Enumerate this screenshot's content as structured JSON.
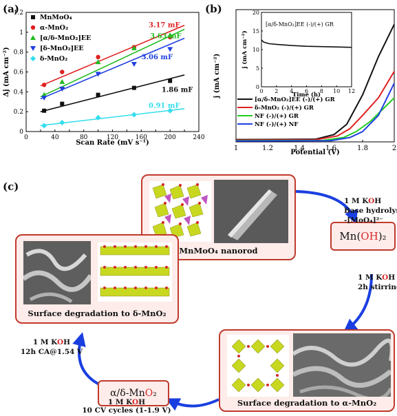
{
  "panel_labels": {
    "a": "(a)",
    "b": "(b)",
    "c": "(c)"
  },
  "chart_data": [
    {
      "type": "scatter",
      "panel": "(a)",
      "xlabel": "Scan Rate (mV s⁻¹)",
      "ylabel": "Δj (mA cm⁻²)",
      "xlim": [
        0,
        240
      ],
      "ylim": [
        0,
        1.2
      ],
      "xticks": [
        0,
        20,
        40,
        60,
        80,
        100,
        120,
        140,
        160,
        180,
        200,
        220,
        240
      ],
      "yticks": [
        0,
        0.2,
        0.4,
        0.6,
        0.8,
        1.0,
        1.2
      ],
      "series": [
        {
          "name": "MnMoO₄",
          "color": "#111111",
          "marker": "square",
          "x": [
            25,
            50,
            100,
            150,
            200
          ],
          "y": [
            0.21,
            0.28,
            0.37,
            0.44,
            0.51
          ],
          "fit": [
            [
              20,
              0.2
            ],
            [
              220,
              0.57
            ]
          ],
          "label": "1.86 mF"
        },
        {
          "name": "α-MnO₂",
          "color": "#e02020",
          "marker": "circle",
          "x": [
            25,
            50,
            100,
            150,
            200
          ],
          "y": [
            0.47,
            0.6,
            0.75,
            0.85,
            0.95
          ],
          "fit": [
            [
              20,
              0.46
            ],
            [
              220,
              1.07
            ]
          ],
          "label": "3.17 mF"
        },
        {
          "name": "[α/δ-MnO₂]EE",
          "color": "#22bb22",
          "marker": "triangle-up",
          "x": [
            25,
            50,
            100,
            150,
            200
          ],
          "y": [
            0.37,
            0.5,
            0.7,
            0.84,
            0.97
          ],
          "fit": [
            [
              20,
              0.35
            ],
            [
              220,
              1.03
            ]
          ],
          "label": "3.63 mF"
        },
        {
          "name": "[δ-MnO₂]EE",
          "color": "#1f3fe0",
          "marker": "triangle-down",
          "x": [
            25,
            50,
            100,
            150,
            200
          ],
          "y": [
            0.34,
            0.43,
            0.58,
            0.68,
            0.83
          ],
          "fit": [
            [
              20,
              0.33
            ],
            [
              220,
              0.94
            ]
          ],
          "label": "3.06 mF"
        },
        {
          "name": "δ-MnO₂",
          "color": "#33ddee",
          "marker": "diamond",
          "x": [
            25,
            50,
            100,
            150,
            200
          ],
          "y": [
            0.06,
            0.09,
            0.14,
            0.17,
            0.21
          ],
          "fit": [
            [
              20,
              0.06
            ],
            [
              220,
              0.23
            ]
          ],
          "label": "0.91 mF"
        }
      ]
    },
    {
      "type": "line",
      "panel": "(b)",
      "xlabel": "Potential (V)",
      "ylabel": "j (mA cm⁻²)",
      "xlim": [
        1.0,
        2.0
      ],
      "ylim": [
        0,
        45
      ],
      "xticks": [
        1.0,
        1.2,
        1.4,
        1.6,
        1.8,
        2.0
      ],
      "xtick_labels": [
        "1",
        "1.2",
        "1.4",
        "1.6",
        "1.8",
        "2"
      ],
      "series": [
        {
          "name": "[α/δ-MnO₂]EE (-)/(+) GR",
          "color": "#111111",
          "x": [
            1.0,
            1.5,
            1.62,
            1.7,
            1.8,
            1.9,
            2.0
          ],
          "y": [
            0.8,
            0.9,
            2.5,
            6,
            16,
            29,
            40
          ]
        },
        {
          "name": "δ-MnO₂ (-)/(+) GR",
          "color": "#e02020",
          "x": [
            1.0,
            1.5,
            1.64,
            1.72,
            1.8,
            1.9,
            2.0
          ],
          "y": [
            0.6,
            0.7,
            2.0,
            4.5,
            9,
            15,
            24
          ]
        },
        {
          "name": "NF (-)/(+) GR",
          "color": "#22cc22",
          "x": [
            1.0,
            1.55,
            1.68,
            1.76,
            1.85,
            2.0
          ],
          "y": [
            0.4,
            0.5,
            1.5,
            3.5,
            7,
            15
          ]
        },
        {
          "name": "NF (-)/(+) NF",
          "color": "#1f3fe0",
          "x": [
            1.0,
            1.6,
            1.72,
            1.8,
            1.9,
            2.0
          ],
          "y": [
            0.3,
            0.4,
            1.5,
            3.5,
            9,
            20
          ]
        }
      ],
      "inset": {
        "title": "[α/δ-MnO₂]EE (-)/(+) GR",
        "xlabel": "Time (h)",
        "ylabel": "j (mA cm⁻²)",
        "xlim": [
          0,
          12
        ],
        "ylim": [
          0,
          20
        ],
        "xticks": [
          0,
          2,
          4,
          6,
          8,
          10,
          12
        ],
        "yticks": [
          0,
          5,
          10,
          15,
          20
        ],
        "x": [
          0,
          0.3,
          1,
          2,
          4,
          6,
          8,
          10,
          12
        ],
        "y": [
          12.6,
          12.0,
          11.6,
          11.4,
          11.1,
          10.9,
          10.8,
          10.7,
          10.6
        ]
      }
    }
  ],
  "schematic": {
    "boxes": {
      "nanorod": "MnMoO₄ nanorod",
      "hydroxide": "Mn(OH)₂",
      "alpha": "Surface degradation to α-MnO₂",
      "alpha_delta": "α/δ-MnO₂",
      "delta": "Surface degradation to δ-MnO₂"
    },
    "steps": {
      "s1_line1": "1 M KOH",
      "s1_line2": "Base hydrolysis",
      "s1_line3": "-[MoO₄]²⁻",
      "s2_line1": "1 M KOH",
      "s2_line2": "2h stirring",
      "s3_line1": "1 M KOH",
      "s3_line2": "10 CV cycles (1-1.9 V)",
      "s4_line1": "1 M KOH",
      "s4_line2": "12h CA@1.54 V"
    },
    "colors": {
      "box_border": "#c0392b",
      "box_fill": "#fdecea",
      "arrow": "#1a3fe0",
      "oxygen_red": "#d62728"
    }
  }
}
